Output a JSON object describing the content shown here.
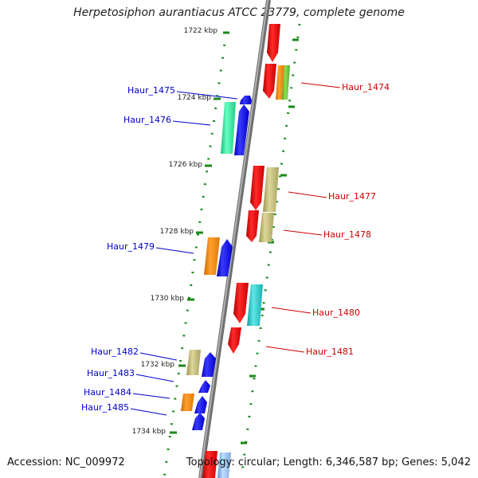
{
  "title": "Herpetosiphon aurantiacus ATCC 23779, complete genome",
  "accession": "Accession: NC_009972",
  "topology": "Topology: circular; Length: 6,346,587 bp; Genes: 5,042",
  "ticks": [
    "1722 kbp",
    "1724 kbp",
    "1726 kbp",
    "1728 kbp",
    "1730 kbp",
    "1732 kbp",
    "1734 kbp"
  ],
  "left_labels": [
    "Haur_1475",
    "Haur_1476",
    "Haur_1479",
    "Haur_1482",
    "Haur_1483",
    "Haur_1484",
    "Haur_1485"
  ],
  "right_labels": [
    "Haur_1474",
    "Haur_1477",
    "Haur_1478",
    "Haur_1480",
    "Haur_1481"
  ],
  "colors": {
    "backbone": "#808080",
    "forward_gene": "#0000ff",
    "reverse_gene": "#ff0000",
    "tick_dot": "#1a8a1a",
    "left_label": "#0000cc",
    "right_label": "#cc0000",
    "cog_green": "#33dd99",
    "cog_orange": "#ff8c00",
    "cog_olive": "#bdb76b",
    "cog_cyan": "#20c0c0"
  }
}
